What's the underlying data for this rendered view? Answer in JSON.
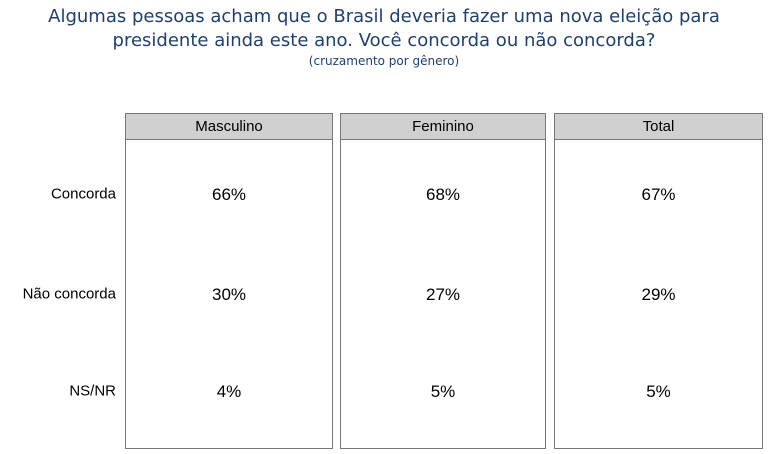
{
  "header": {
    "title": [
      "Algumas pessoas acham que o Brasil deveria fazer uma nova eleição para",
      "presidente ainda este ano. Você concorda ou não concorda?"
    ],
    "subtitle": "(cruzamento por gênero)"
  },
  "table": {
    "columns": [
      "Masculino",
      "Feminino",
      "Total"
    ],
    "rows": [
      {
        "label": "Concorda",
        "values": [
          "66%",
          "68%",
          "67%"
        ]
      },
      {
        "label": "Não concorda",
        "values": [
          "30%",
          "27%",
          "29%"
        ]
      },
      {
        "label": "NS/NR",
        "values": [
          "4%",
          "5%",
          "5%"
        ]
      }
    ]
  }
}
